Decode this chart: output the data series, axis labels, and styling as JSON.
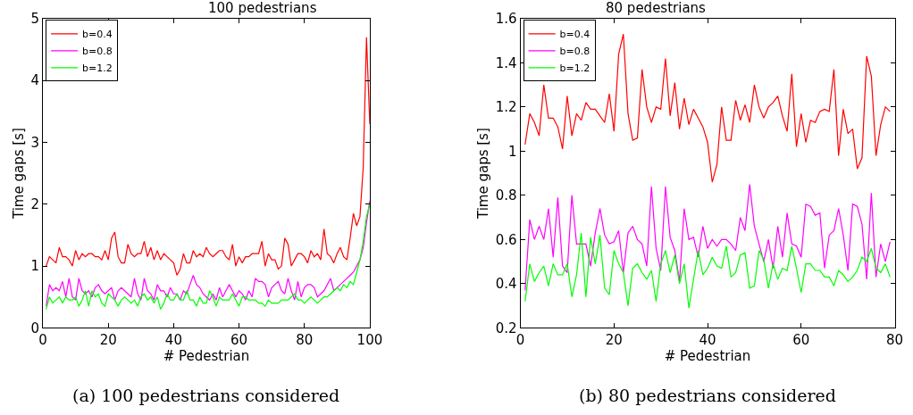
{
  "chart_data": [
    {
      "type": "line",
      "title": "100 pedestrians",
      "xlabel": "# Pedestrian",
      "ylabel": "Time gaps [s]",
      "annotations": [
        "(a) 100 pedestrians considered"
      ],
      "x": [
        1,
        2,
        3,
        4,
        5,
        6,
        7,
        8,
        9,
        10,
        11,
        12,
        13,
        14,
        15,
        16,
        17,
        18,
        19,
        20,
        21,
        22,
        23,
        24,
        25,
        26,
        27,
        28,
        29,
        30,
        31,
        32,
        33,
        34,
        35,
        36,
        37,
        38,
        39,
        40,
        41,
        42,
        43,
        44,
        45,
        46,
        47,
        48,
        49,
        50,
        51,
        52,
        53,
        54,
        55,
        56,
        57,
        58,
        59,
        60,
        61,
        62,
        63,
        64,
        65,
        66,
        67,
        68,
        69,
        70,
        71,
        72,
        73,
        74,
        75,
        76,
        77,
        78,
        79,
        80,
        81,
        82,
        83,
        84,
        85,
        86,
        87,
        88,
        89,
        90,
        91,
        92,
        93,
        94,
        95,
        96,
        97,
        98,
        99,
        100
      ],
      "xlim": [
        0,
        100
      ],
      "xticks": [
        0,
        20,
        40,
        60,
        80,
        100
      ],
      "ylim": [
        0,
        5
      ],
      "yticks": [
        0,
        1,
        2,
        3,
        4,
        5
      ],
      "legend": "top left",
      "marker": "none",
      "line_style": "solid",
      "series": [
        {
          "name": "b=0.4",
          "color": "#ff0000",
          "values": [
            1.0,
            1.15,
            1.1,
            1.05,
            1.3,
            1.15,
            1.15,
            1.1,
            1.0,
            1.25,
            1.1,
            1.2,
            1.15,
            1.2,
            1.2,
            1.15,
            1.15,
            1.1,
            1.25,
            1.1,
            1.45,
            1.55,
            1.15,
            1.05,
            1.05,
            1.35,
            1.2,
            1.15,
            1.2,
            1.2,
            1.4,
            1.15,
            1.3,
            1.1,
            1.25,
            1.1,
            1.2,
            1.15,
            1.1,
            1.05,
            0.85,
            0.95,
            1.2,
            1.05,
            1.05,
            1.25,
            1.15,
            1.2,
            1.15,
            1.3,
            1.2,
            1.15,
            1.2,
            1.25,
            1.25,
            1.15,
            1.1,
            1.35,
            1.0,
            1.15,
            1.05,
            1.15,
            1.15,
            1.2,
            1.2,
            1.2,
            1.4,
            1.0,
            1.2,
            1.1,
            1.1,
            0.95,
            1.0,
            1.45,
            1.35,
            1.0,
            1.1,
            1.2,
            1.2,
            1.15,
            1.05,
            1.25,
            1.15,
            1.2,
            1.1,
            1.6,
            1.2,
            1.15,
            1.05,
            1.2,
            1.3,
            1.15,
            1.1,
            1.45,
            1.85,
            1.65,
            1.8,
            2.6,
            4.7,
            3.3
          ]
        },
        {
          "name": "b=0.8",
          "color": "#ff00ff",
          "values": [
            0.35,
            0.7,
            0.6,
            0.65,
            0.6,
            0.75,
            0.5,
            0.8,
            0.5,
            0.45,
            0.8,
            0.6,
            0.55,
            0.6,
            0.5,
            0.65,
            0.7,
            0.6,
            0.55,
            0.6,
            0.65,
            0.45,
            0.6,
            0.65,
            0.6,
            0.55,
            0.5,
            0.8,
            0.55,
            0.45,
            0.8,
            0.6,
            0.55,
            0.45,
            0.7,
            0.6,
            0.6,
            0.5,
            0.65,
            0.55,
            0.55,
            0.45,
            0.6,
            0.55,
            0.7,
            0.85,
            0.7,
            0.65,
            0.55,
            0.5,
            0.45,
            0.55,
            0.45,
            0.65,
            0.5,
            0.6,
            0.7,
            0.6,
            0.5,
            0.6,
            0.55,
            0.45,
            0.6,
            0.5,
            0.8,
            0.75,
            0.75,
            0.7,
            0.5,
            0.65,
            0.7,
            0.75,
            0.6,
            0.55,
            0.8,
            0.6,
            0.45,
            0.75,
            0.5,
            0.65,
            0.7,
            0.7,
            0.65,
            0.5,
            0.55,
            0.6,
            0.7,
            0.8,
            0.6,
            0.65,
            0.7,
            0.75,
            0.8,
            0.85,
            0.9,
            1.0,
            1.1,
            1.3,
            1.7,
            2.05
          ]
        },
        {
          "name": "b=1.2",
          "color": "#00ff00",
          "values": [
            0.3,
            0.5,
            0.4,
            0.45,
            0.5,
            0.4,
            0.5,
            0.45,
            0.45,
            0.5,
            0.35,
            0.45,
            0.6,
            0.35,
            0.6,
            0.5,
            0.55,
            0.4,
            0.35,
            0.55,
            0.5,
            0.45,
            0.35,
            0.45,
            0.5,
            0.45,
            0.4,
            0.45,
            0.35,
            0.5,
            0.55,
            0.45,
            0.5,
            0.4,
            0.5,
            0.3,
            0.4,
            0.55,
            0.45,
            0.45,
            0.55,
            0.45,
            0.45,
            0.6,
            0.45,
            0.45,
            0.35,
            0.5,
            0.4,
            0.4,
            0.6,
            0.5,
            0.35,
            0.5,
            0.45,
            0.45,
            0.45,
            0.55,
            0.45,
            0.35,
            0.5,
            0.5,
            0.45,
            0.45,
            0.45,
            0.4,
            0.4,
            0.35,
            0.45,
            0.4,
            0.4,
            0.4,
            0.45,
            0.45,
            0.45,
            0.5,
            0.55,
            0.45,
            0.45,
            0.4,
            0.45,
            0.5,
            0.45,
            0.4,
            0.45,
            0.5,
            0.5,
            0.55,
            0.6,
            0.65,
            0.6,
            0.7,
            0.65,
            0.75,
            0.7,
            0.9,
            1.1,
            1.4,
            1.8,
            2.0
          ]
        }
      ]
    },
    {
      "type": "line",
      "title": "80 pedestrians",
      "xlabel": "# Pedestrian",
      "ylabel": "Time gaps [s]",
      "annotations": [
        "(b) 80 pedestrians considered"
      ],
      "x": [
        1,
        2,
        3,
        4,
        5,
        6,
        7,
        8,
        9,
        10,
        11,
        12,
        13,
        14,
        15,
        16,
        17,
        18,
        19,
        20,
        21,
        22,
        23,
        24,
        25,
        26,
        27,
        28,
        29,
        30,
        31,
        32,
        33,
        34,
        35,
        36,
        37,
        38,
        39,
        40,
        41,
        42,
        43,
        44,
        45,
        46,
        47,
        48,
        49,
        50,
        51,
        52,
        53,
        54,
        55,
        56,
        57,
        58,
        59,
        60,
        61,
        62,
        63,
        64,
        65,
        66,
        67,
        68,
        69,
        70,
        71,
        72,
        73,
        74,
        75,
        76,
        77,
        78,
        79
      ],
      "xlim": [
        0,
        80
      ],
      "xticks": [
        0,
        20,
        40,
        60,
        80
      ],
      "ylim": [
        0.2,
        1.6
      ],
      "yticks": [
        0.2,
        0.4,
        0.6,
        0.8,
        1,
        1.2,
        1.4,
        1.6
      ],
      "legend": "top left",
      "marker": "none",
      "line_style": "solid",
      "series": [
        {
          "name": "b=0.4",
          "color": "#ff0000",
          "values": [
            1.03,
            1.17,
            1.13,
            1.07,
            1.3,
            1.15,
            1.15,
            1.11,
            1.01,
            1.25,
            1.07,
            1.17,
            1.14,
            1.22,
            1.19,
            1.19,
            1.16,
            1.13,
            1.26,
            1.09,
            1.44,
            1.53,
            1.17,
            1.05,
            1.06,
            1.37,
            1.2,
            1.13,
            1.2,
            1.19,
            1.42,
            1.16,
            1.31,
            1.1,
            1.24,
            1.12,
            1.19,
            1.15,
            1.11,
            1.04,
            0.86,
            0.94,
            1.2,
            1.05,
            1.05,
            1.23,
            1.14,
            1.21,
            1.13,
            1.3,
            1.2,
            1.15,
            1.2,
            1.22,
            1.25,
            1.16,
            1.09,
            1.35,
            1.02,
            1.17,
            1.04,
            1.14,
            1.13,
            1.18,
            1.19,
            1.18,
            1.37,
            0.98,
            1.19,
            1.08,
            1.1,
            0.92,
            0.97,
            1.43,
            1.34,
            0.98,
            1.12,
            1.2,
            1.18
          ]
        },
        {
          "name": "b=0.8",
          "color": "#ff00ff",
          "values": [
            0.37,
            0.69,
            0.6,
            0.66,
            0.6,
            0.74,
            0.52,
            0.79,
            0.48,
            0.45,
            0.8,
            0.58,
            0.58,
            0.58,
            0.48,
            0.63,
            0.74,
            0.62,
            0.58,
            0.59,
            0.64,
            0.45,
            0.63,
            0.66,
            0.6,
            0.58,
            0.48,
            0.84,
            0.56,
            0.46,
            0.84,
            0.61,
            0.55,
            0.41,
            0.74,
            0.6,
            0.61,
            0.52,
            0.66,
            0.56,
            0.6,
            0.57,
            0.6,
            0.6,
            0.58,
            0.55,
            0.7,
            0.64,
            0.85,
            0.66,
            0.58,
            0.5,
            0.6,
            0.47,
            0.66,
            0.52,
            0.72,
            0.58,
            0.57,
            0.52,
            0.76,
            0.75,
            0.71,
            0.72,
            0.47,
            0.62,
            0.64,
            0.74,
            0.62,
            0.46,
            0.76,
            0.75,
            0.67,
            0.42,
            0.81,
            0.43,
            0.58,
            0.5,
            0.59
          ]
        },
        {
          "name": "b=1.2",
          "color": "#00ff00",
          "values": [
            0.32,
            0.49,
            0.41,
            0.45,
            0.48,
            0.39,
            0.49,
            0.44,
            0.44,
            0.49,
            0.34,
            0.44,
            0.63,
            0.34,
            0.61,
            0.49,
            0.62,
            0.38,
            0.35,
            0.55,
            0.49,
            0.45,
            0.3,
            0.47,
            0.49,
            0.45,
            0.42,
            0.46,
            0.32,
            0.49,
            0.55,
            0.45,
            0.53,
            0.4,
            0.49,
            0.29,
            0.42,
            0.55,
            0.44,
            0.47,
            0.52,
            0.48,
            0.47,
            0.57,
            0.43,
            0.45,
            0.53,
            0.54,
            0.38,
            0.39,
            0.55,
            0.51,
            0.38,
            0.49,
            0.42,
            0.47,
            0.46,
            0.57,
            0.47,
            0.36,
            0.49,
            0.49,
            0.46,
            0.46,
            0.43,
            0.43,
            0.39,
            0.46,
            0.44,
            0.41,
            0.43,
            0.46,
            0.52,
            0.5,
            0.56,
            0.47,
            0.45,
            0.49,
            0.43
          ]
        }
      ]
    }
  ]
}
